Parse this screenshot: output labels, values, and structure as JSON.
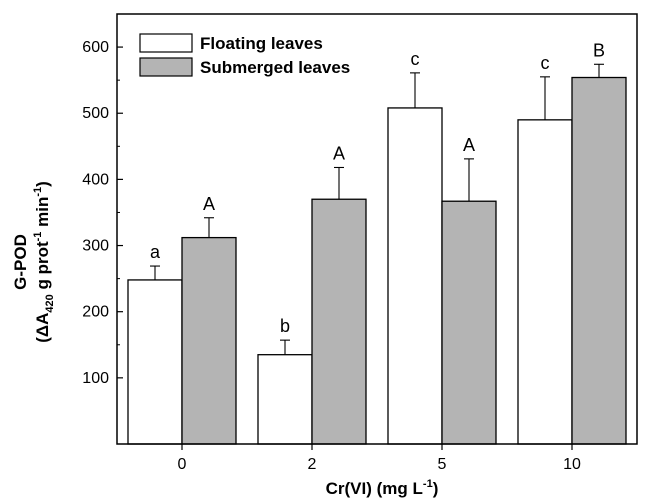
{
  "chart_data": {
    "type": "bar",
    "xlabel": "Cr(VI) (mg L",
    "xlabel_superscript": "-1",
    "xlabel_suffix": ")",
    "ylabel_line1": "G-POD",
    "ylabel_line2": "(ΔA",
    "ylabel_sub": "420",
    "ylabel_mid": " g prot",
    "ylabel_sup1": "-1",
    "ylabel_mid2": " min",
    "ylabel_sup2": "-1",
    "ylabel_end": ")",
    "categories": [
      "0",
      "2",
      "5",
      "10"
    ],
    "ylim": [
      0,
      650
    ],
    "yticks": [
      100,
      200,
      300,
      400,
      500,
      600
    ],
    "legend_position": "top-left",
    "series": [
      {
        "name": "Floating leaves",
        "color": "#ffffff",
        "values": [
          248,
          135,
          508,
          490
        ],
        "errors": [
          21,
          22,
          53,
          65
        ],
        "letters": [
          "a",
          "b",
          "c",
          "c"
        ]
      },
      {
        "name": "Submerged leaves",
        "color": "#b4b4b4",
        "values": [
          312,
          370,
          367,
          554
        ],
        "errors": [
          30,
          48,
          64,
          20
        ],
        "letters": [
          "A",
          "A",
          "A",
          "B"
        ]
      }
    ]
  }
}
